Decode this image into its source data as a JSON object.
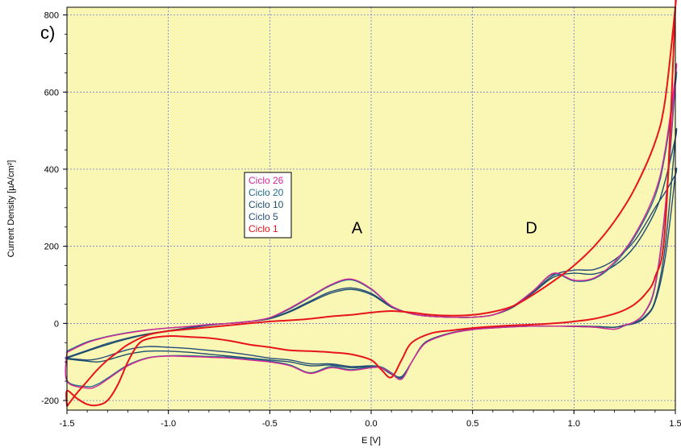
{
  "chart_data": {
    "type": "line",
    "panel_label": "c)",
    "xlabel": "E [V]",
    "ylabel": "Current Density [µA/cm²]",
    "xlim": [
      -1.5,
      1.5
    ],
    "ylim": [
      -225,
      820
    ],
    "x_ticks": [
      -1.5,
      -1.0,
      -0.5,
      0.0,
      0.5,
      1.0,
      1.5
    ],
    "x_tick_labels": [
      "-1.5",
      "-1.0",
      "-0.5",
      "0.0",
      "0.5",
      "1.0",
      "1.5"
    ],
    "y_ticks": [
      -200,
      0,
      200,
      400,
      600,
      800
    ],
    "y_tick_labels": [
      "-200",
      "0",
      "200",
      "400",
      "600",
      "800"
    ],
    "grid": true,
    "legend_position": "center-left",
    "background": "#faf7b4",
    "annotations": [
      {
        "text": "A",
        "x": -0.07,
        "y": 250
      },
      {
        "text": "D",
        "x": 0.79,
        "y": 250
      }
    ],
    "series": [
      {
        "name": "Ciclo 26",
        "color": "#d5279a",
        "anodic_x": [
          -1.5,
          -1.4,
          -1.3,
          -1.2,
          -1.1,
          -1.0,
          -0.9,
          -0.8,
          -0.7,
          -0.6,
          -0.5,
          -0.4,
          -0.3,
          -0.2,
          -0.1,
          0.0,
          0.1,
          0.2,
          0.3,
          0.4,
          0.5,
          0.6,
          0.7,
          0.8,
          0.9,
          1.0,
          1.1,
          1.2,
          1.3,
          1.4,
          1.45,
          1.5
        ],
        "anodic_y": [
          -75,
          -50,
          -35,
          -25,
          -17,
          -12,
          -8,
          -3,
          0,
          5,
          15,
          40,
          70,
          100,
          115,
          90,
          45,
          25,
          18,
          16,
          16,
          22,
          45,
          85,
          130,
          112,
          118,
          160,
          230,
          340,
          450,
          640
        ],
        "cathodic_x": [
          1.5,
          1.45,
          1.4,
          1.35,
          1.3,
          1.25,
          1.2,
          1.1,
          1.0,
          0.9,
          0.8,
          0.7,
          0.6,
          0.5,
          0.4,
          0.3,
          0.25,
          0.2,
          0.15,
          0.1,
          0.05,
          0.0,
          -0.1,
          -0.2,
          -0.3,
          -0.4,
          -0.5,
          -0.6,
          -0.7,
          -0.8,
          -0.9,
          -1.0,
          -1.1,
          -1.2,
          -1.3,
          -1.35,
          -1.4,
          -1.5
        ],
        "cathodic_y": [
          640,
          300,
          100,
          30,
          5,
          -5,
          -15,
          -10,
          -8,
          -7,
          -7,
          -9,
          -12,
          -16,
          -25,
          -42,
          -60,
          -100,
          -145,
          -130,
          -115,
          -115,
          -122,
          -115,
          -130,
          -110,
          -100,
          -95,
          -90,
          -88,
          -86,
          -85,
          -90,
          -110,
          -145,
          -162,
          -168,
          -150
        ]
      },
      {
        "name": "Ciclo 20",
        "color": "#1f6c8a",
        "anodic_x": [
          -1.5,
          -1.4,
          -1.3,
          -1.2,
          -1.1,
          -1.0,
          -0.9,
          -0.8,
          -0.7,
          -0.6,
          -0.5,
          -0.4,
          -0.3,
          -0.2,
          -0.1,
          0.0,
          0.1,
          0.2,
          0.3,
          0.4,
          0.5,
          0.6,
          0.7,
          0.8,
          0.9,
          1.0,
          1.1,
          1.2,
          1.3,
          1.4,
          1.45,
          1.5
        ],
        "anodic_y": [
          -72,
          -48,
          -34,
          -24,
          -17,
          -12,
          -8,
          -3,
          0,
          5,
          14,
          38,
          68,
          98,
          113,
          88,
          45,
          25,
          18,
          16,
          16,
          22,
          45,
          85,
          128,
          110,
          116,
          155,
          225,
          330,
          440,
          620
        ],
        "cathodic_x": [
          1.5,
          1.45,
          1.4,
          1.35,
          1.3,
          1.25,
          1.2,
          1.1,
          1.0,
          0.9,
          0.8,
          0.7,
          0.6,
          0.5,
          0.4,
          0.3,
          0.25,
          0.2,
          0.15,
          0.1,
          0.05,
          0.0,
          -0.1,
          -0.2,
          -0.3,
          -0.4,
          -0.5,
          -0.6,
          -0.7,
          -0.8,
          -0.9,
          -1.0,
          -1.1,
          -1.2,
          -1.3,
          -1.35,
          -1.4,
          -1.5
        ],
        "cathodic_y": [
          620,
          290,
          95,
          28,
          4,
          -6,
          -15,
          -10,
          -8,
          -7,
          -7,
          -9,
          -12,
          -16,
          -25,
          -42,
          -60,
          -100,
          -142,
          -128,
          -113,
          -113,
          -120,
          -112,
          -128,
          -108,
          -98,
          -93,
          -88,
          -86,
          -84,
          -84,
          -89,
          -108,
          -142,
          -158,
          -164,
          -148
        ]
      },
      {
        "name": "Ciclo 10",
        "color": "#1b4d6e",
        "anodic_x": [
          -1.5,
          -1.4,
          -1.3,
          -1.2,
          -1.1,
          -1.0,
          -0.9,
          -0.8,
          -0.7,
          -0.6,
          -0.5,
          -0.4,
          -0.3,
          -0.2,
          -0.1,
          0.0,
          0.1,
          0.2,
          0.3,
          0.4,
          0.5,
          0.6,
          0.7,
          0.8,
          0.9,
          1.0,
          1.1,
          1.2,
          1.3,
          1.4,
          1.45,
          1.5
        ],
        "anodic_y": [
          -90,
          -72,
          -55,
          -40,
          -28,
          -20,
          -12,
          -5,
          0,
          5,
          12,
          30,
          55,
          78,
          88,
          75,
          42,
          25,
          18,
          16,
          16,
          22,
          42,
          80,
          120,
          130,
          128,
          150,
          200,
          290,
          370,
          480
        ],
        "cathodic_x": [
          1.5,
          1.45,
          1.4,
          1.35,
          1.3,
          1.25,
          1.2,
          1.1,
          1.0,
          0.9,
          0.8,
          0.7,
          0.6,
          0.5,
          0.4,
          0.3,
          0.25,
          0.2,
          0.15,
          0.1,
          0.05,
          0.0,
          -0.1,
          -0.2,
          -0.3,
          -0.4,
          -0.5,
          -0.6,
          -0.7,
          -0.8,
          -0.9,
          -1.0,
          -1.1,
          -1.2,
          -1.3,
          -1.35,
          -1.4,
          -1.5
        ],
        "cathodic_y": [
          480,
          200,
          60,
          18,
          2,
          -4,
          -10,
          -8,
          -7,
          -7,
          -7,
          -8,
          -11,
          -15,
          -24,
          -40,
          -58,
          -100,
          -140,
          -132,
          -116,
          -112,
          -115,
          -108,
          -110,
          -100,
          -95,
          -90,
          -85,
          -80,
          -75,
          -72,
          -72,
          -80,
          -95,
          -100,
          -98,
          -92
        ]
      },
      {
        "name": "Ciclo 5",
        "color": "#254c7a",
        "anodic_x": [
          -1.5,
          -1.4,
          -1.3,
          -1.2,
          -1.1,
          -1.0,
          -0.9,
          -0.8,
          -0.7,
          -0.6,
          -0.5,
          -0.4,
          -0.3,
          -0.2,
          -0.1,
          0.0,
          0.1,
          0.2,
          0.3,
          0.4,
          0.5,
          0.6,
          0.7,
          0.8,
          0.9,
          1.0,
          1.1,
          1.2,
          1.3,
          1.4,
          1.45,
          1.5
        ],
        "anodic_y": [
          -88,
          -70,
          -52,
          -38,
          -27,
          -19,
          -11,
          -4,
          0,
          5,
          13,
          32,
          58,
          82,
          92,
          78,
          44,
          25,
          18,
          16,
          16,
          22,
          45,
          82,
          125,
          138,
          140,
          165,
          215,
          300,
          340,
          385
        ],
        "cathodic_x": [
          1.5,
          1.45,
          1.4,
          1.35,
          1.3,
          1.25,
          1.2,
          1.1,
          1.0,
          0.9,
          0.8,
          0.7,
          0.6,
          0.5,
          0.4,
          0.3,
          0.25,
          0.2,
          0.15,
          0.1,
          0.05,
          0.0,
          -0.1,
          -0.2,
          -0.3,
          -0.4,
          -0.5,
          -0.6,
          -0.7,
          -0.8,
          -0.9,
          -1.0,
          -1.1,
          -1.2,
          -1.3,
          -1.35,
          -1.4,
          -1.5
        ],
        "cathodic_y": [
          385,
          170,
          55,
          15,
          0,
          -5,
          -10,
          -8,
          -7,
          -7,
          -7,
          -8,
          -11,
          -15,
          -24,
          -40,
          -58,
          -100,
          -138,
          -130,
          -114,
          -110,
          -112,
          -105,
          -105,
          -95,
          -90,
          -82,
          -75,
          -70,
          -65,
          -62,
          -60,
          -68,
          -85,
          -92,
          -95,
          -90
        ]
      },
      {
        "name": "Ciclo 1",
        "color": "#e8141b",
        "anodic_x": [
          -1.5,
          -1.45,
          -1.4,
          -1.35,
          -1.3,
          -1.25,
          -1.2,
          -1.1,
          -1.0,
          -0.9,
          -0.8,
          -0.7,
          -0.6,
          -0.5,
          -0.4,
          -0.3,
          -0.2,
          -0.1,
          0.0,
          0.1,
          0.2,
          0.3,
          0.4,
          0.5,
          0.6,
          0.7,
          0.8,
          0.9,
          1.0,
          1.1,
          1.2,
          1.3,
          1.4,
          1.45,
          1.5
        ],
        "anodic_y": [
          -215,
          -180,
          -150,
          -120,
          -95,
          -75,
          -55,
          -30,
          -20,
          -15,
          -10,
          -5,
          0,
          5,
          8,
          12,
          18,
          22,
          28,
          32,
          28,
          22,
          20,
          22,
          30,
          45,
          75,
          110,
          150,
          200,
          265,
          350,
          470,
          580,
          820
        ],
        "cathodic_x": [
          1.5,
          1.45,
          1.4,
          1.35,
          1.3,
          1.25,
          1.2,
          1.1,
          1.0,
          0.9,
          0.8,
          0.7,
          0.6,
          0.5,
          0.4,
          0.3,
          0.2,
          0.15,
          0.1,
          0.05,
          0.0,
          -0.1,
          -0.2,
          -0.3,
          -0.4,
          -0.5,
          -0.6,
          -0.7,
          -0.8,
          -0.9,
          -1.0,
          -1.1,
          -1.15,
          -1.2,
          -1.25,
          -1.3,
          -1.35,
          -1.4,
          -1.45,
          -1.5
        ],
        "cathodic_y": [
          820,
          250,
          120,
          75,
          50,
          35,
          25,
          12,
          5,
          0,
          -3,
          -5,
          -8,
          -12,
          -18,
          -25,
          -50,
          -95,
          -140,
          -120,
          -95,
          -80,
          -75,
          -72,
          -70,
          -62,
          -55,
          -45,
          -38,
          -35,
          -33,
          -40,
          -55,
          -100,
          -160,
          -200,
          -212,
          -210,
          -195,
          -175
        ]
      }
    ]
  }
}
